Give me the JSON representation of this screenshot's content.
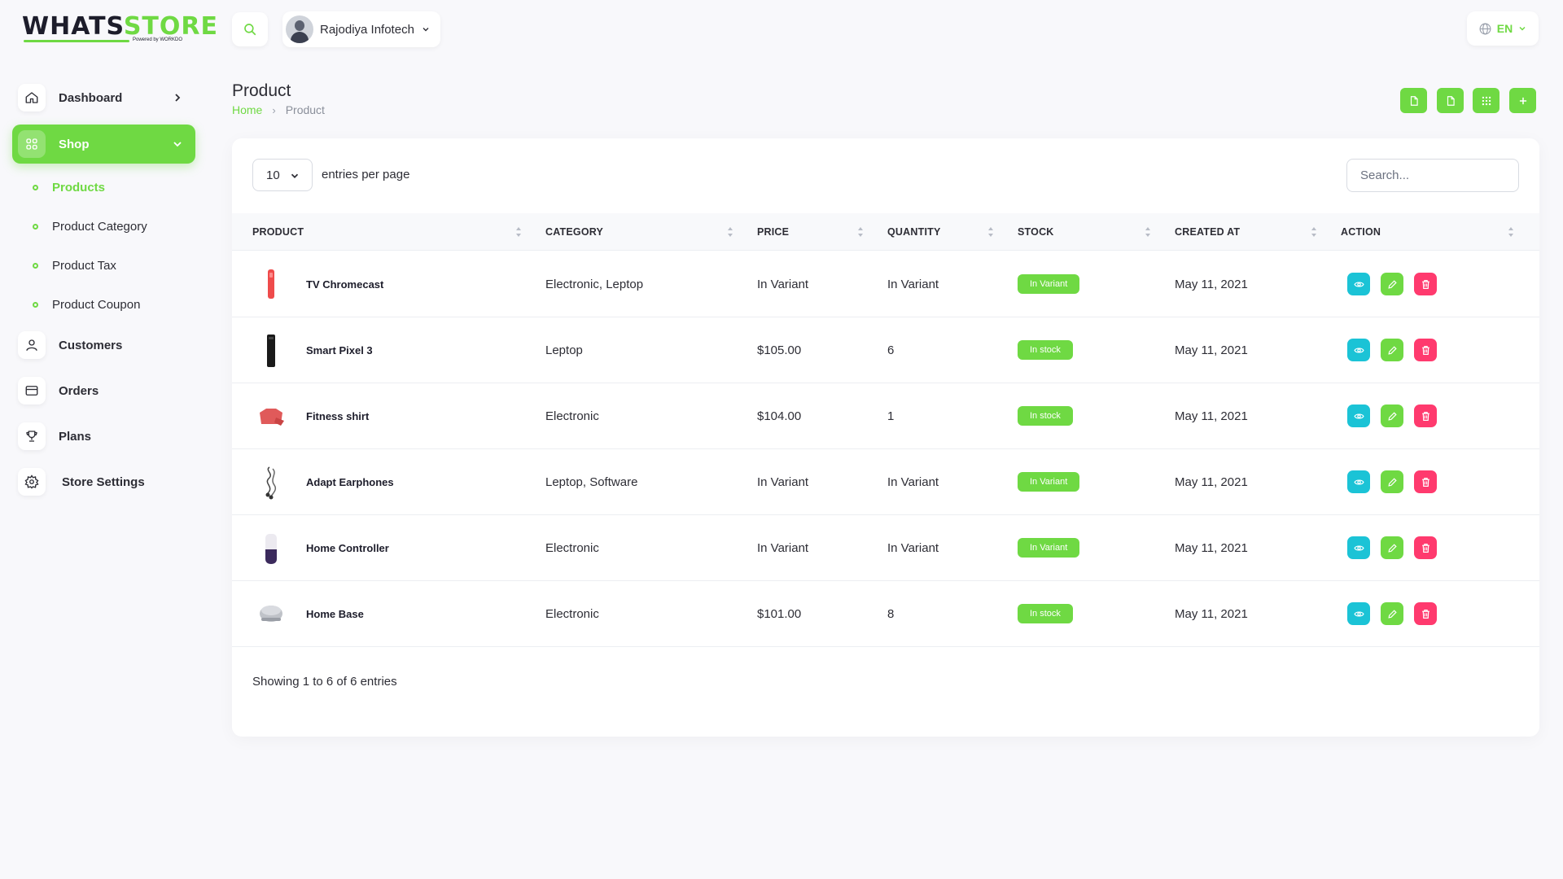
{
  "brand": {
    "name_dark": "WHATS",
    "name_green": "STORE",
    "powered": "Powered by WORKDO"
  },
  "colors": {
    "accent": "#6fd943",
    "info": "#1bc3d6",
    "danger": "#ff3a6e"
  },
  "sidebar": {
    "items": [
      {
        "label": "Dashboard",
        "icon": "home-icon"
      },
      {
        "label": "Shop",
        "icon": "grid-icon"
      },
      {
        "label": "Customers",
        "icon": "user-icon"
      },
      {
        "label": "Orders",
        "icon": "card-icon"
      },
      {
        "label": "Plans",
        "icon": "trophy-icon"
      },
      {
        "label": "Store Settings",
        "icon": "gear-icon"
      }
    ],
    "shop_sub": [
      {
        "label": "Products",
        "active": true
      },
      {
        "label": "Product Category"
      },
      {
        "label": "Product Tax"
      },
      {
        "label": "Product Coupon"
      }
    ]
  },
  "topbar": {
    "user_name": "Rajodiya Infotech",
    "language": "EN"
  },
  "page": {
    "title": "Product",
    "breadcrumb": {
      "home": "Home",
      "current": "Product"
    }
  },
  "table": {
    "per_page": "10",
    "per_page_label": "entries per page",
    "search_placeholder": "Search...",
    "columns": [
      "PRODUCT",
      "CATEGORY",
      "PRICE",
      "QUANTITY",
      "STOCK",
      "CREATED AT",
      "ACTION"
    ],
    "rows": [
      {
        "product": "TV Chromecast",
        "category": "Electronic, Leptop",
        "price": "In Variant",
        "quantity": "In Variant",
        "stock": "In Variant",
        "created": "May 11, 2021"
      },
      {
        "product": "Smart Pixel 3",
        "category": "Leptop",
        "price": "$105.00",
        "quantity": "6",
        "stock": "In stock",
        "created": "May 11, 2021"
      },
      {
        "product": "Fitness shirt",
        "category": "Electronic",
        "price": "$104.00",
        "quantity": "1",
        "stock": "In stock",
        "created": "May 11, 2021"
      },
      {
        "product": "Adapt Earphones",
        "category": "Leptop, Software",
        "price": "In Variant",
        "quantity": "In Variant",
        "stock": "In Variant",
        "created": "May 11, 2021"
      },
      {
        "product": "Home Controller",
        "category": "Electronic",
        "price": "In Variant",
        "quantity": "In Variant",
        "stock": "In Variant",
        "created": "May 11, 2021"
      },
      {
        "product": "Home Base",
        "category": "Electronic",
        "price": "$101.00",
        "quantity": "8",
        "stock": "In stock",
        "created": "May 11, 2021"
      }
    ],
    "footer": "Showing 1 to 6 of 6 entries"
  }
}
